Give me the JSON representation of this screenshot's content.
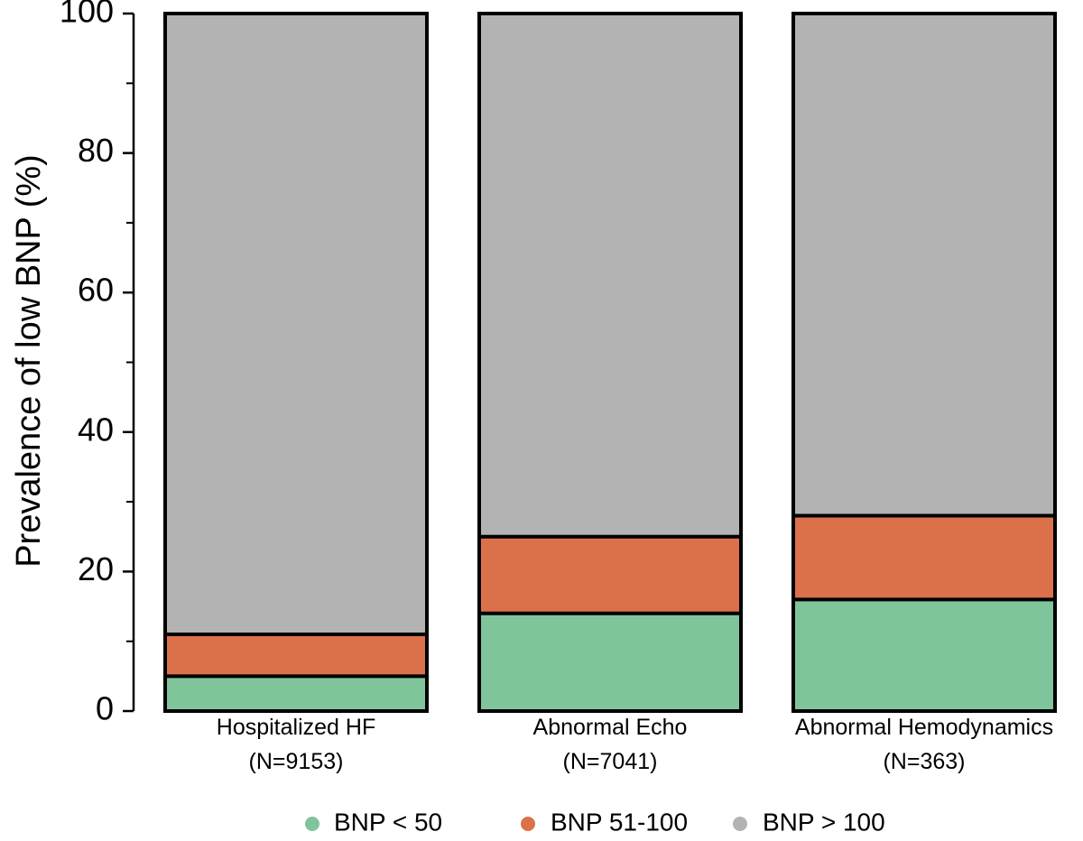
{
  "chart_data": {
    "type": "bar",
    "stacked": true,
    "title": "",
    "ylabel": "Prevalence of low BNP (%)",
    "xlabel": "",
    "ylim": [
      0,
      100
    ],
    "yticks": [
      0,
      20,
      40,
      60,
      80,
      100
    ],
    "categories": [
      {
        "label": "Hospitalized HF",
        "sublabel": "(N=9153)"
      },
      {
        "label": "Abnormal Echo",
        "sublabel": "(N=7041)"
      },
      {
        "label": "Abnormal Hemodynamics",
        "sublabel": "(N=363)"
      }
    ],
    "series": [
      {
        "name": "BNP < 50",
        "color": "#80c49c",
        "values": [
          5,
          14,
          16
        ]
      },
      {
        "name": "BNP 51-100",
        "color": "#db714a",
        "values": [
          6,
          11,
          12
        ]
      },
      {
        "name": "BNP > 100",
        "color": "#b3b3b3",
        "values": [
          89,
          75,
          72
        ]
      }
    ],
    "legend_position": "bottom",
    "grid": false
  }
}
